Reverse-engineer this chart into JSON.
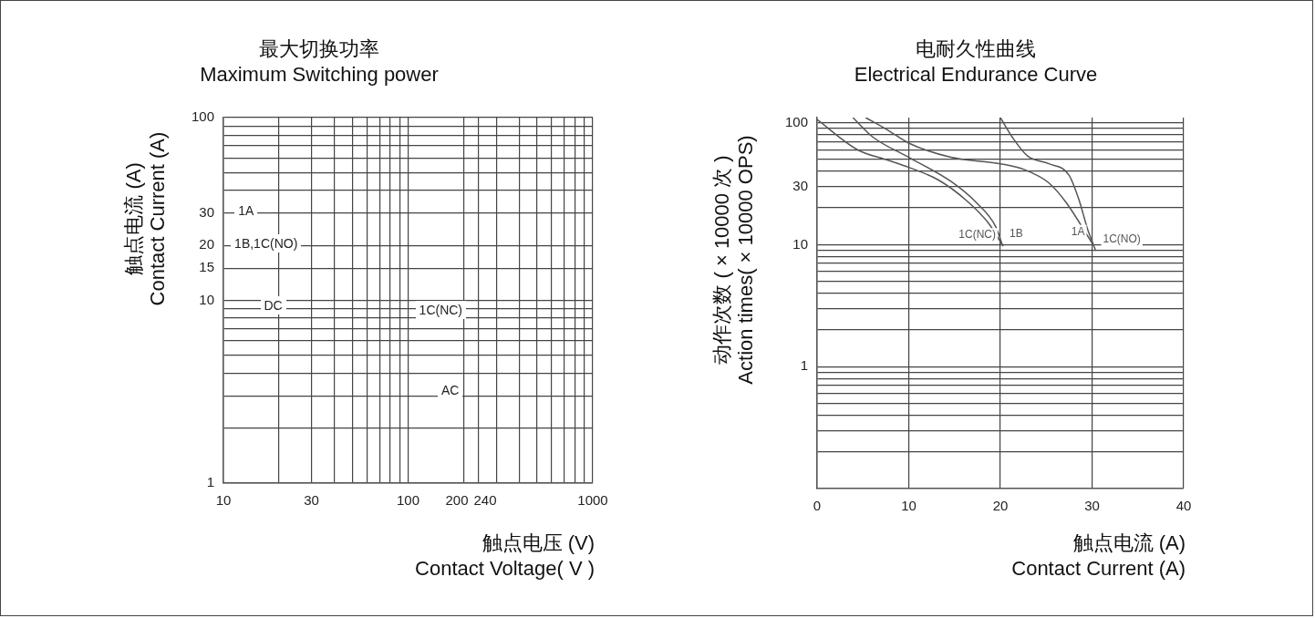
{
  "chart_data": [
    {
      "type": "line",
      "title": "最大切换功率",
      "subtitle": "Maximum Switching power",
      "xlabel": "触点电压 (V)\nContact Voltage( V )",
      "ylabel": "触点电流 (A)\nContact Current (A)",
      "log": "xy",
      "grid": true,
      "legend": false,
      "xlim": [
        10,
        1000
      ],
      "xticks": [
        10,
        {
          "value": 20,
          "label": null
        },
        30,
        {
          "value": 40,
          "label": null
        },
        {
          "value": 50,
          "label": null
        },
        {
          "value": 60,
          "label": null
        },
        {
          "value": 70,
          "label": null
        },
        {
          "value": 80,
          "label": null
        },
        {
          "value": 90,
          "label": null
        },
        100,
        200,
        240,
        {
          "value": 300,
          "label": null
        },
        {
          "value": 400,
          "label": null
        },
        {
          "value": 500,
          "label": null
        },
        {
          "value": 600,
          "label": null
        },
        {
          "value": 700,
          "label": null
        },
        {
          "value": 800,
          "label": null
        },
        {
          "value": 900,
          "label": null
        },
        1000
      ],
      "ylim": [
        1,
        100
      ],
      "yticks": [
        1,
        {
          "value": 2,
          "label": null
        },
        {
          "value": 3,
          "label": null
        },
        {
          "value": 4,
          "label": null
        },
        {
          "value": 5,
          "label": null
        },
        {
          "value": 6,
          "label": null
        },
        {
          "value": 7,
          "label": null
        },
        {
          "value": 8,
          "label": null
        },
        {
          "value": 9,
          "label": null
        },
        10,
        15,
        20,
        30,
        {
          "value": 40,
          "label": null
        },
        {
          "value": 50,
          "label": null
        },
        {
          "value": 60,
          "label": null
        },
        {
          "value": 70,
          "label": null
        },
        {
          "value": 80,
          "label": null
        },
        {
          "value": 90,
          "label": null
        },
        100
      ],
      "annotations": [
        "1A",
        "1B,1C(NO)",
        "DC",
        "1C(NC)",
        "AC"
      ]
    },
    {
      "type": "line",
      "title": "电耐久性曲线",
      "subtitle": "Electrical Endurance Curve",
      "xlabel": "触点电流 (A)\nContact Current (A)",
      "ylabel": "动作次数 ( × 10000 次 )\nAction times( × 10000 OPS)",
      "log": "y",
      "grid": true,
      "legend": false,
      "marker": "none",
      "xlim": [
        0,
        40
      ],
      "xticks": [
        0,
        10,
        20,
        30,
        40
      ],
      "ylim": [
        0.1,
        110
      ],
      "yticks": [
        {
          "value": 0.2,
          "label": null
        },
        {
          "value": 0.3,
          "label": null
        },
        {
          "value": 0.4,
          "label": null
        },
        {
          "value": 0.5,
          "label": null
        },
        {
          "value": 0.6,
          "label": null
        },
        {
          "value": 0.7,
          "label": null
        },
        {
          "value": 0.8,
          "label": null
        },
        {
          "value": 0.9,
          "label": null
        },
        1,
        {
          "value": 2,
          "label": null
        },
        {
          "value": 3,
          "label": null
        },
        {
          "value": 4,
          "label": null
        },
        {
          "value": 5,
          "label": null
        },
        {
          "value": 6,
          "label": null
        },
        {
          "value": 7,
          "label": null
        },
        {
          "value": 8,
          "label": null
        },
        {
          "value": 9,
          "label": null
        },
        10,
        {
          "value": 20,
          "label": null
        },
        30,
        {
          "value": 40,
          "label": null
        },
        {
          "value": 50,
          "label": null
        },
        {
          "value": 60,
          "label": null
        },
        {
          "value": 70,
          "label": null
        },
        {
          "value": 80,
          "label": null
        },
        {
          "value": 90,
          "label": null
        },
        100
      ],
      "series": [
        {
          "name": "1C(NC)",
          "color": "#555555",
          "x": [
            0,
            4.4,
            7.8,
            10,
            13.2,
            16.3,
            18.7,
            20.3
          ],
          "values": [
            106,
            60,
            49,
            43,
            34,
            23,
            15,
            9.7
          ]
        },
        {
          "name": "1B",
          "color": "#555555",
          "x": [
            3.9,
            6.1,
            10,
            14.6,
            17.4,
            19.5,
            20.2
          ],
          "values": [
            110,
            76,
            52,
            33,
            22,
            14,
            10
          ]
        },
        {
          "name": "1A",
          "color": "#555555",
          "x": [
            5.3,
            7.8,
            10,
            14.6,
            20,
            22.7,
            25.3,
            27.2,
            30
          ],
          "values": [
            110,
            86,
            68,
            52,
            46,
            41,
            32,
            22,
            10.3
          ]
        },
        {
          "name": "1C(NO)",
          "color": "#555555",
          "x": [
            20,
            21.3,
            23,
            25.3,
            27.5,
            28.6,
            29.5,
            30.4
          ],
          "values": [
            110,
            76,
            53,
            46,
            37,
            23,
            13.5,
            8.9
          ]
        }
      ]
    }
  ]
}
